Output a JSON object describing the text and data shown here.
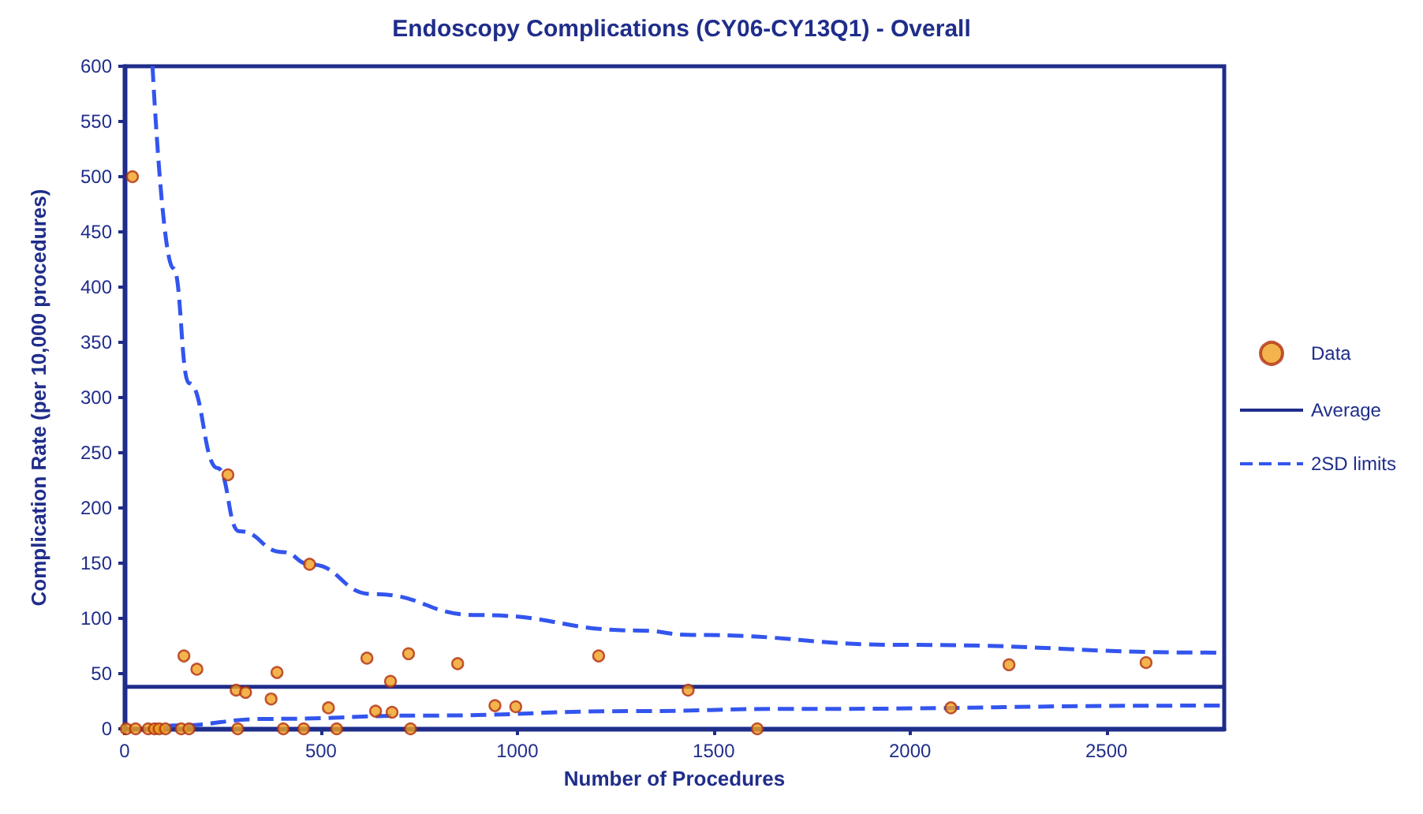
{
  "chart_data": {
    "type": "scatter",
    "title": "Endoscopy Complications (CY06-CY13Q1) - Overall",
    "xlabel": "Number of Procedures",
    "ylabel": "Complication Rate (per 10,000 procedures)",
    "xlim": [
      0,
      2800
    ],
    "xticks": [
      0,
      500,
      1000,
      1500,
      2000,
      2500
    ],
    "ylim": [
      0,
      600
    ],
    "yticks": [
      0,
      50,
      100,
      150,
      200,
      250,
      300,
      350,
      400,
      450,
      500,
      550,
      600
    ],
    "grid": false,
    "legend": "right",
    "series": [
      {
        "name": "Data",
        "type": "scatter",
        "marker": "circle",
        "color": "#f0a020",
        "x": [
          20,
          4,
          28,
          60,
          76,
          88,
          104,
          144,
          164,
          288,
          404,
          456,
          540,
          728,
          1611,
          151,
          184,
          263,
          284,
          308,
          373,
          388,
          471,
          519,
          617,
          639,
          677,
          681,
          723,
          848,
          943,
          996,
          1207,
          1435,
          2104,
          2252,
          2601
        ],
        "values": [
          500,
          0,
          0,
          0,
          0,
          0,
          0,
          0,
          0,
          0,
          0,
          0,
          0,
          0,
          0,
          66,
          54,
          230,
          35,
          33,
          27,
          51,
          149,
          19,
          64,
          16,
          43,
          15,
          68,
          59,
          21,
          20,
          66,
          35,
          19,
          58,
          60
        ]
      },
      {
        "name": "Average",
        "type": "line",
        "marker": "none",
        "line_style": "solid",
        "color": "#1f2d8a",
        "x": [
          0,
          2800
        ],
        "values": [
          38,
          38
        ]
      },
      {
        "name": "2SD limits",
        "type": "line",
        "marker": "none",
        "line_style": "dashed",
        "color": "#3355ee",
        "x": [
          71,
          124,
          164,
          237,
          291,
          404,
          471,
          631,
          900,
          1311,
          1444,
          1991,
          2777,
          2800
        ],
        "values": [
          600,
          417,
          313,
          236,
          179,
          160,
          149,
          122,
          103,
          89,
          85,
          76,
          69,
          68
        ]
      },
      {
        "type": "line",
        "marker": "none",
        "line_style": "dashed",
        "color": "#3355ee",
        "x": [
          100,
          124,
          364,
          764,
          1296,
          1684,
          2751,
          2800
        ],
        "values": [
          0,
          3,
          9,
          12,
          16,
          18,
          21,
          21
        ]
      }
    ]
  }
}
